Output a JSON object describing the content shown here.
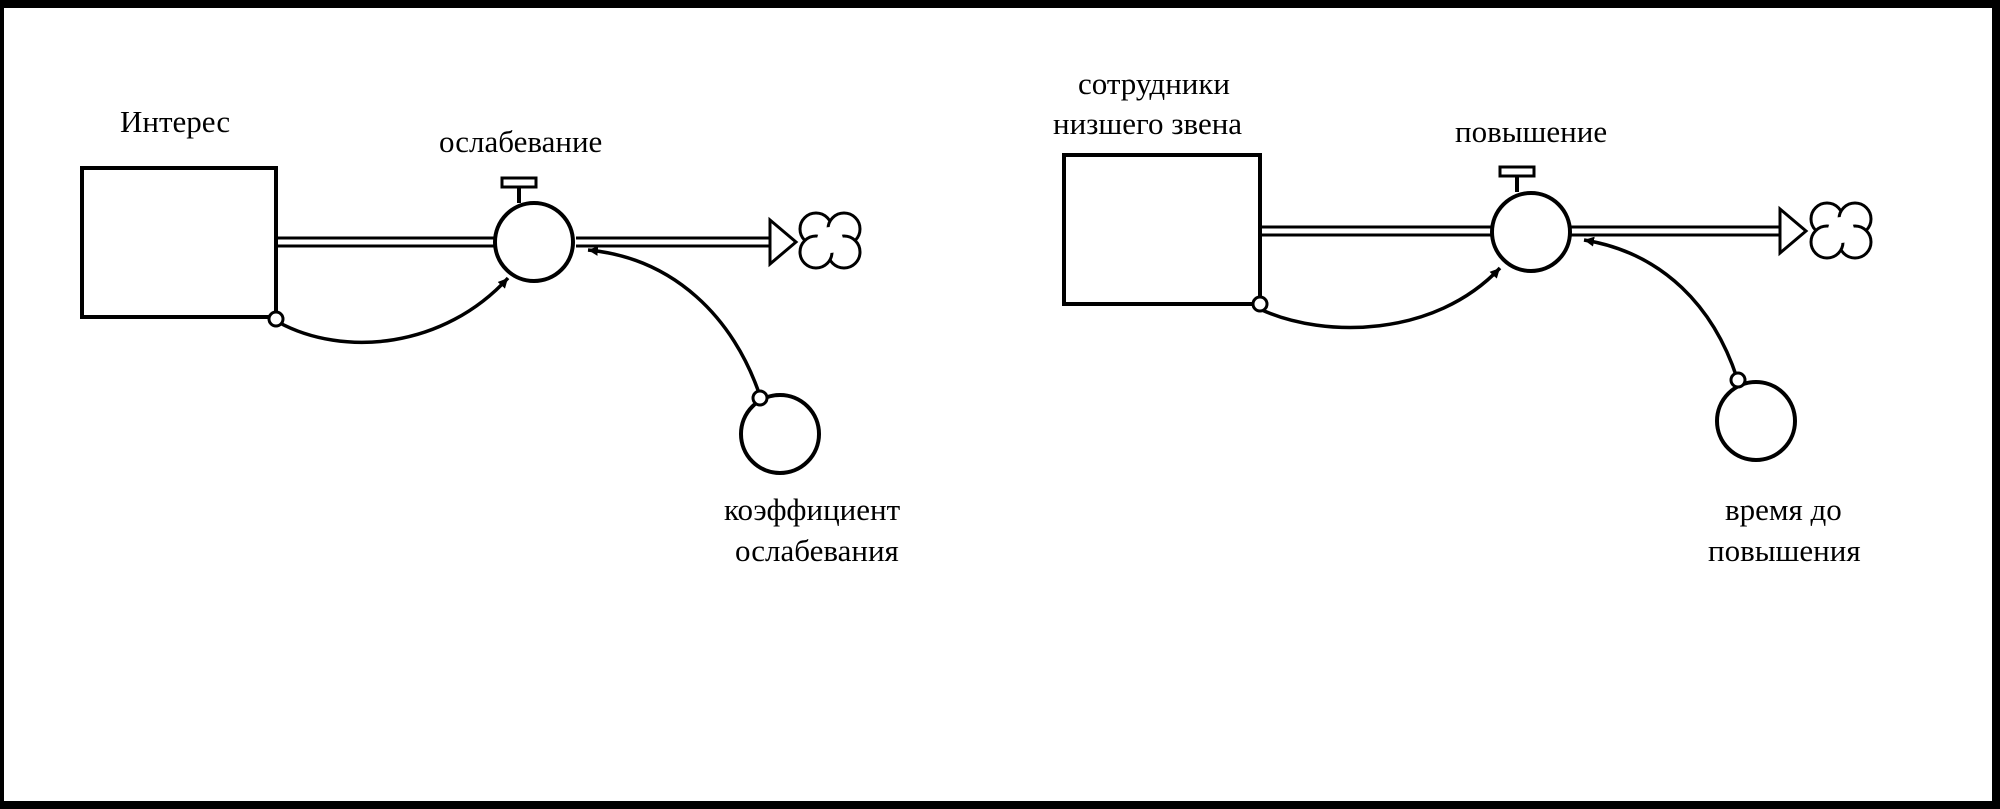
{
  "diagram_left": {
    "stock_label": "Интерес",
    "flow_label": "ослабевание",
    "aux_label_line1": "коэффициент",
    "aux_label_line2": "ослабевания"
  },
  "diagram_right": {
    "stock_label_line1": "сотрудники",
    "stock_label_line2": "низшего звена",
    "flow_label": "повышение",
    "aux_label_line1": "время до",
    "aux_label_line2": "повышения"
  }
}
